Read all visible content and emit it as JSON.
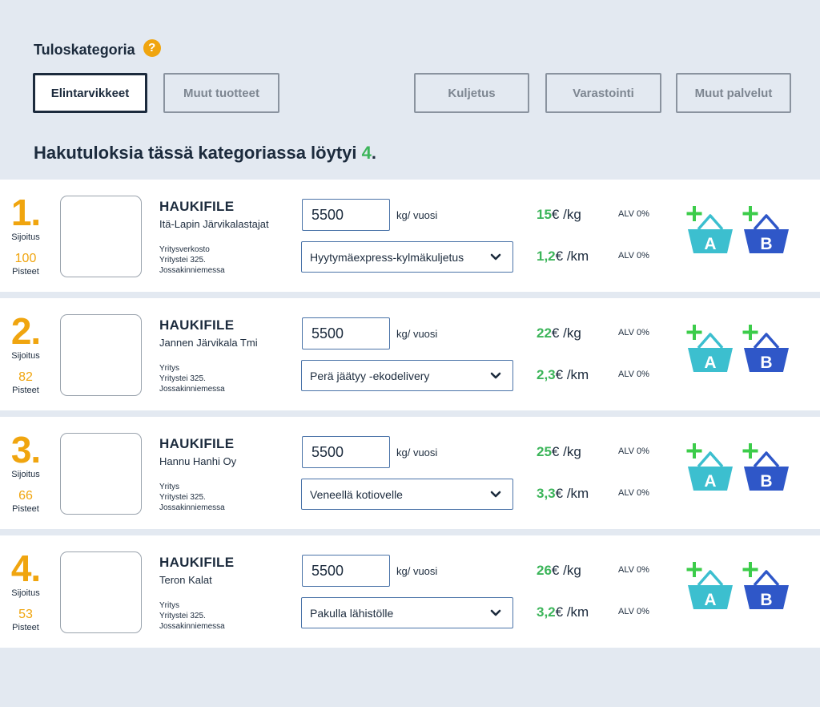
{
  "category": {
    "title": "Tuloskategoria",
    "help_icon": "help-icon",
    "help_glyph": "?"
  },
  "tabs": [
    {
      "label": "Elintarvikkeet",
      "active": true
    },
    {
      "label": "Muut tuotteet",
      "active": false
    },
    {
      "label": "Kuljetus",
      "active": false
    },
    {
      "label": "Varastointi",
      "active": false
    },
    {
      "label": "Muut palvelut",
      "active": false
    }
  ],
  "results": {
    "heading_prefix": "Hakutuloksia tässä kategoriassa löytyi ",
    "count": "4",
    "heading_suffix": "."
  },
  "labels": {
    "rank": "Sijoitus",
    "score": "Pisteet",
    "unit": "kg/ vuosi",
    "per_kg": "€ /kg",
    "per_km": "€ /km",
    "vat": "ALV 0%",
    "basket_a": "A",
    "basket_b": "B"
  },
  "colors": {
    "accent_orange": "#f0a50f",
    "price_green": "#3cb55a",
    "basket_a": "#3cbfcf",
    "basket_b": "#2f57c8",
    "plus_green": "#3ccc4a",
    "navy": "#1c2b3d"
  },
  "rows": [
    {
      "rank": "1.",
      "score": "100",
      "product": "HAUKIFILE",
      "company": "Itä-Lapin Järvikalastajat",
      "address": [
        "Yritysverkosto",
        "Yritystei 325.",
        "Jossakinniemessa"
      ],
      "quantity": "5500",
      "delivery": "Hyytymäexpress-kylmäkuljetus",
      "price_kg": "15",
      "price_km": "1,2"
    },
    {
      "rank": "2.",
      "score": "82",
      "product": "HAUKIFILE",
      "company": "Jannen Järvikala Tmi",
      "address": [
        "Yritys",
        "Yritystei 325.",
        "Jossakinniemessa"
      ],
      "quantity": "5500",
      "delivery": "Perä jäätyy -ekodelivery",
      "price_kg": "22",
      "price_km": "2,3"
    },
    {
      "rank": "3.",
      "score": "66",
      "product": "HAUKIFILE",
      "company": "Hannu Hanhi Oy",
      "address": [
        "Yritys",
        "Yritystei 325.",
        "Jossakinniemessa"
      ],
      "quantity": "5500",
      "delivery": "Veneellä kotiovelle",
      "price_kg": "25",
      "price_km": "3,3"
    },
    {
      "rank": "4.",
      "score": "53",
      "product": "HAUKIFILE",
      "company": "Teron Kalat",
      "address": [
        "Yritys",
        "Yritystei 325.",
        "Jossakinniemessa"
      ],
      "quantity": "5500",
      "delivery": "Pakulla lähistölle",
      "price_kg": "26",
      "price_km": "3,2"
    }
  ]
}
